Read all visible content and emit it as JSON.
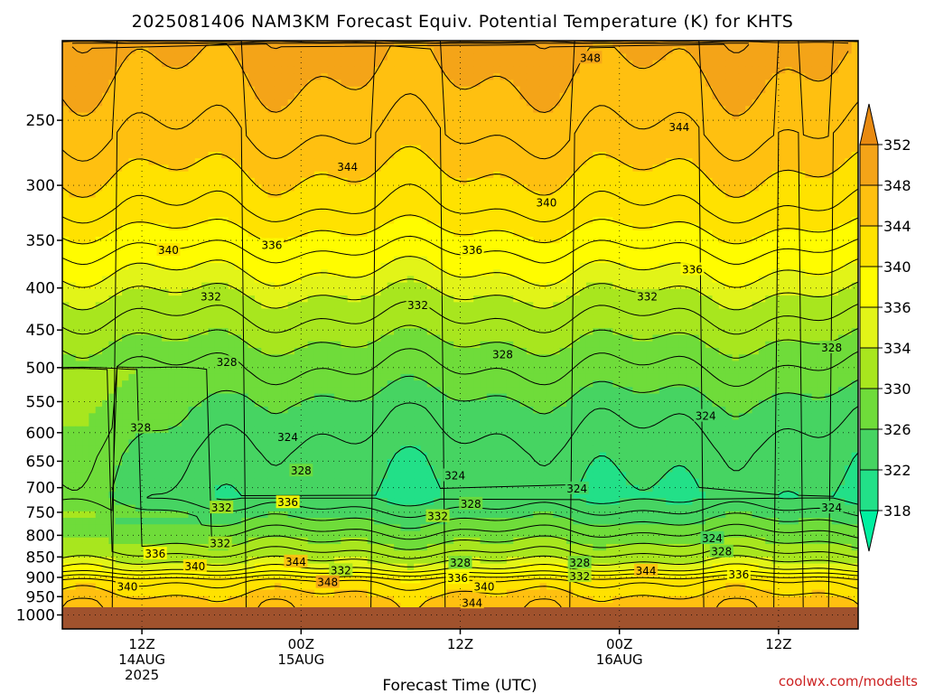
{
  "chart_data": {
    "type": "heatmap",
    "title": "2025081406 NAM3KM Forecast Equiv. Potential Temperature (K) for KHTS",
    "xlabel": "Forecast Time (UTC)",
    "ylabel": "",
    "y_scale": "log-pressure (inverted)",
    "y_ticks": [
      250,
      300,
      350,
      400,
      450,
      500,
      550,
      600,
      650,
      700,
      750,
      800,
      850,
      900,
      950,
      1000
    ],
    "y_range_hpa": [
      200,
      1040
    ],
    "x_ticks": [
      {
        "hour": 6,
        "lines": [
          "12Z",
          "14AUG",
          "2025"
        ]
      },
      {
        "hour": 18,
        "lines": [
          "00Z",
          "15AUG"
        ]
      },
      {
        "hour": 30,
        "lines": [
          "12Z"
        ]
      },
      {
        "hour": 42,
        "lines": [
          "00Z",
          "16AUG"
        ]
      },
      {
        "hour": 54,
        "lines": [
          "12Z"
        ]
      }
    ],
    "x_range_hours": [
      0,
      60
    ],
    "grid": true,
    "colorbar": {
      "levels": [
        318,
        322,
        326,
        330,
        334,
        336,
        340,
        344,
        348,
        352
      ],
      "colors": [
        "#00f0a0",
        "#22e088",
        "#46d462",
        "#6fdc3a",
        "#a8e61e",
        "#e2f418",
        "#fffc00",
        "#ffe200",
        "#ffc010",
        "#f4a418",
        "#e88a10"
      ]
    },
    "contour_labels": [
      {
        "hour": 39.8,
        "hpa": 210,
        "text": "348"
      },
      {
        "hour": 46.5,
        "hpa": 255,
        "text": "344"
      },
      {
        "hour": 21.5,
        "hpa": 285,
        "text": "344"
      },
      {
        "hour": 36.5,
        "hpa": 315,
        "text": "340"
      },
      {
        "hour": 8.0,
        "hpa": 360,
        "text": "340"
      },
      {
        "hour": 15.8,
        "hpa": 355,
        "text": "336"
      },
      {
        "hour": 30.9,
        "hpa": 360,
        "text": "336"
      },
      {
        "hour": 47.5,
        "hpa": 380,
        "text": "336"
      },
      {
        "hour": 11.2,
        "hpa": 410,
        "text": "332"
      },
      {
        "hour": 26.8,
        "hpa": 420,
        "text": "332"
      },
      {
        "hour": 44.1,
        "hpa": 410,
        "text": "332"
      },
      {
        "hour": 12.4,
        "hpa": 493,
        "text": "328"
      },
      {
        "hour": 33.2,
        "hpa": 482,
        "text": "328"
      },
      {
        "hour": 58.0,
        "hpa": 473,
        "text": "328"
      },
      {
        "hour": 5.9,
        "hpa": 592,
        "text": "328"
      },
      {
        "hour": 48.5,
        "hpa": 573,
        "text": "324"
      },
      {
        "hour": 17.0,
        "hpa": 608,
        "text": "324"
      },
      {
        "hour": 18.0,
        "hpa": 668,
        "text": "328"
      },
      {
        "hour": 29.6,
        "hpa": 677,
        "text": "324"
      },
      {
        "hour": 38.8,
        "hpa": 702,
        "text": "324"
      },
      {
        "hour": 17.0,
        "hpa": 730,
        "text": "336"
      },
      {
        "hour": 30.8,
        "hpa": 733,
        "text": "328"
      },
      {
        "hour": 12.0,
        "hpa": 741,
        "text": "332"
      },
      {
        "hour": 28.3,
        "hpa": 759,
        "text": "332"
      },
      {
        "hour": 58.0,
        "hpa": 741,
        "text": "324"
      },
      {
        "hour": 49.0,
        "hpa": 807,
        "text": "324"
      },
      {
        "hour": 11.9,
        "hpa": 819,
        "text": "332"
      },
      {
        "hour": 49.7,
        "hpa": 838,
        "text": "328"
      },
      {
        "hour": 7.0,
        "hpa": 843,
        "text": "336"
      },
      {
        "hour": 30.0,
        "hpa": 865,
        "text": "328"
      },
      {
        "hour": 39.0,
        "hpa": 865,
        "text": "328"
      },
      {
        "hour": 17.6,
        "hpa": 862,
        "text": "344"
      },
      {
        "hour": 10.0,
        "hpa": 873,
        "text": "340"
      },
      {
        "hour": 21.0,
        "hpa": 883,
        "text": "332"
      },
      {
        "hour": 39.0,
        "hpa": 898,
        "text": "332"
      },
      {
        "hour": 29.8,
        "hpa": 903,
        "text": "336"
      },
      {
        "hour": 44.0,
        "hpa": 884,
        "text": "344"
      },
      {
        "hour": 51.0,
        "hpa": 893,
        "text": "336"
      },
      {
        "hour": 20.0,
        "hpa": 913,
        "text": "348"
      },
      {
        "hour": 4.9,
        "hpa": 925,
        "text": "340"
      },
      {
        "hour": 31.8,
        "hpa": 925,
        "text": "340"
      },
      {
        "hour": 30.9,
        "hpa": 967,
        "text": "344"
      }
    ]
  },
  "credit": "coolwx.com/modelts"
}
